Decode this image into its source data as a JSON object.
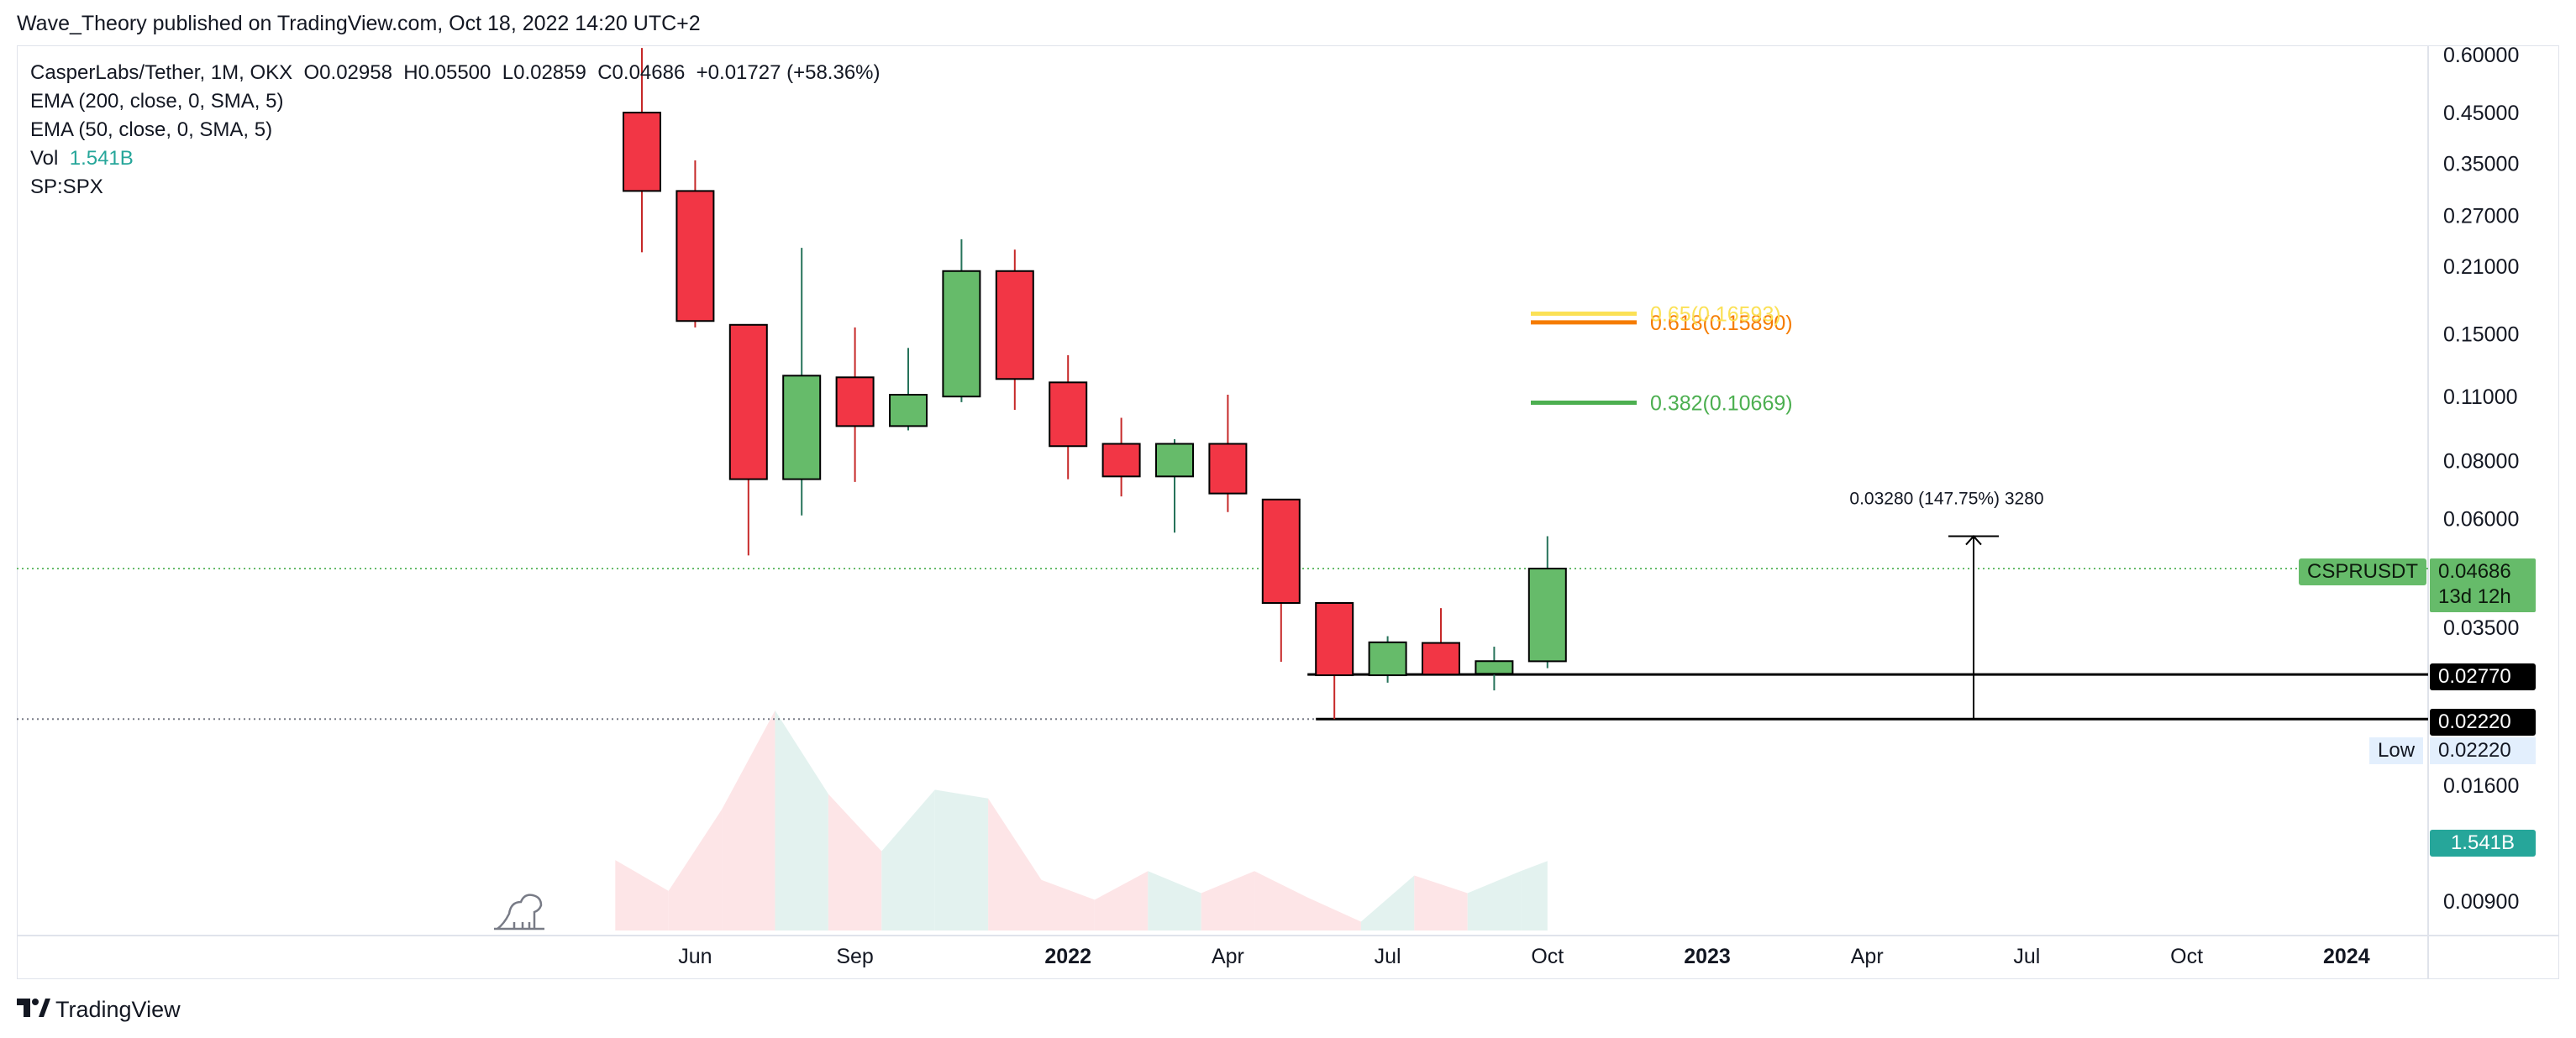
{
  "header": {
    "published": "Wave_Theory published on TradingView.com, Oct 18, 2022 14:20 UTC+2"
  },
  "legend": {
    "symbol_line": "CasperLabs/Tether, 1M, OKX",
    "ohlc": {
      "o_label": "O",
      "o": "0.02958",
      "h_label": "H",
      "h": "0.05500",
      "l_label": "L",
      "l": "0.02859",
      "c_label": "C",
      "c": "0.04686",
      "change": "+0.01727 (+58.36%)"
    },
    "ema200": "EMA (200, close, 0, SMA, 5)",
    "ema50": "EMA (50, close, 0, SMA, 5)",
    "vol_label": "Vol",
    "vol_value": "1.541B",
    "spx": "SP:SPX"
  },
  "tags": {
    "symbol": "CSPRUSDT",
    "price": "0.04686",
    "countdown": "13d 12h",
    "level1": "0.02770",
    "level2": "0.02220",
    "low_label": "Low",
    "low_value": "0.02220",
    "volume": "1.541B"
  },
  "colors": {
    "up": "#66bb6a",
    "down": "#f23645",
    "vol_up": "#e3f2ef",
    "vol_down": "#fde5e7",
    "fib_382": "#4caf50",
    "fib_618": "#f57c00",
    "fib_65": "#fbe156",
    "dotted": "#66bb6a"
  },
  "footer": {
    "brand": "TradingView",
    "logo_icon": "tradingview-logo-icon"
  },
  "chart_data": {
    "type": "candlestick",
    "timeframe": "1M",
    "y_scale": "log",
    "y_ticks": [
      "0.60000",
      "0.45000",
      "0.35000",
      "0.27000",
      "0.21000",
      "0.15000",
      "0.11000",
      "0.08000",
      "0.06000",
      "0.03500",
      "0.01600",
      "0.00900"
    ],
    "x_ticks": [
      {
        "date": "2021-06",
        "label": "Jun",
        "bold": false
      },
      {
        "date": "2021-09",
        "label": "Sep",
        "bold": false
      },
      {
        "date": "2022-01",
        "label": "2022",
        "bold": true
      },
      {
        "date": "2022-04",
        "label": "Apr",
        "bold": false
      },
      {
        "date": "2022-07",
        "label": "Jul",
        "bold": false
      },
      {
        "date": "2022-10",
        "label": "Oct",
        "bold": false
      },
      {
        "date": "2023-01",
        "label": "2023",
        "bold": true
      },
      {
        "date": "2023-04",
        "label": "Apr",
        "bold": false
      },
      {
        "date": "2023-07",
        "label": "Jul",
        "bold": false
      },
      {
        "date": "2023-10",
        "label": "Oct",
        "bold": false
      },
      {
        "date": "2024-01",
        "label": "2024",
        "bold": true
      }
    ],
    "candles": [
      {
        "date": "2021-05",
        "o": 0.45,
        "h": 0.62,
        "l": 0.225,
        "c": 0.305
      },
      {
        "date": "2021-06",
        "o": 0.305,
        "h": 0.355,
        "l": 0.155,
        "c": 0.16
      },
      {
        "date": "2021-07",
        "o": 0.157,
        "h": 0.157,
        "l": 0.05,
        "c": 0.073
      },
      {
        "date": "2021-08",
        "o": 0.073,
        "h": 0.23,
        "l": 0.061,
        "c": 0.122
      },
      {
        "date": "2021-09",
        "o": 0.121,
        "h": 0.155,
        "l": 0.072,
        "c": 0.095
      },
      {
        "date": "2021-10",
        "o": 0.095,
        "h": 0.14,
        "l": 0.093,
        "c": 0.111
      },
      {
        "date": "2021-11",
        "o": 0.11,
        "h": 0.24,
        "l": 0.107,
        "c": 0.205
      },
      {
        "date": "2021-12",
        "o": 0.205,
        "h": 0.228,
        "l": 0.103,
        "c": 0.12
      },
      {
        "date": "2022-01",
        "o": 0.118,
        "h": 0.135,
        "l": 0.073,
        "c": 0.086
      },
      {
        "date": "2022-02",
        "o": 0.087,
        "h": 0.099,
        "l": 0.067,
        "c": 0.074
      },
      {
        "date": "2022-03",
        "o": 0.074,
        "h": 0.089,
        "l": 0.056,
        "c": 0.087
      },
      {
        "date": "2022-04",
        "o": 0.087,
        "h": 0.111,
        "l": 0.062,
        "c": 0.068
      },
      {
        "date": "2022-05",
        "o": 0.066,
        "h": 0.066,
        "l": 0.0295,
        "c": 0.0395
      },
      {
        "date": "2022-06",
        "o": 0.0395,
        "h": 0.0395,
        "l": 0.0222,
        "c": 0.0276
      },
      {
        "date": "2022-07",
        "o": 0.0276,
        "h": 0.0335,
        "l": 0.0266,
        "c": 0.0325
      },
      {
        "date": "2022-08",
        "o": 0.0324,
        "h": 0.0385,
        "l": 0.0279,
        "c": 0.0277
      },
      {
        "date": "2022-09",
        "o": 0.0278,
        "h": 0.0318,
        "l": 0.0256,
        "c": 0.0296
      },
      {
        "date": "2022-10",
        "o": 0.02958,
        "h": 0.055,
        "l": 0.02859,
        "c": 0.04686
      }
    ],
    "volume_series": [
      {
        "date": "2021-05",
        "v": 0.32,
        "dir": "down"
      },
      {
        "date": "2021-06",
        "v": 0.18,
        "dir": "down"
      },
      {
        "date": "2021-07",
        "v": 0.55,
        "dir": "down"
      },
      {
        "date": "2021-08",
        "v": 1.0,
        "dir": "up"
      },
      {
        "date": "2021-09",
        "v": 0.62,
        "dir": "down"
      },
      {
        "date": "2021-10",
        "v": 0.36,
        "dir": "up"
      },
      {
        "date": "2021-11",
        "v": 0.64,
        "dir": "up"
      },
      {
        "date": "2021-12",
        "v": 0.6,
        "dir": "down"
      },
      {
        "date": "2022-01",
        "v": 0.23,
        "dir": "down"
      },
      {
        "date": "2022-02",
        "v": 0.14,
        "dir": "down"
      },
      {
        "date": "2022-03",
        "v": 0.27,
        "dir": "up"
      },
      {
        "date": "2022-04",
        "v": 0.17,
        "dir": "down"
      },
      {
        "date": "2022-05",
        "v": 0.27,
        "dir": "down"
      },
      {
        "date": "2022-06",
        "v": 0.15,
        "dir": "down"
      },
      {
        "date": "2022-07",
        "v": 0.04,
        "dir": "up"
      },
      {
        "date": "2022-08",
        "v": 0.25,
        "dir": "down"
      },
      {
        "date": "2022-09",
        "v": 0.17,
        "dir": "up"
      },
      {
        "date": "2022-10",
        "v": 0.27,
        "dir": "up"
      }
    ],
    "current_price": 0.04686,
    "horizontal_lines": [
      0.0277,
      0.0222
    ],
    "fib_levels": [
      {
        "label": "0.382(0.10669)",
        "value": 0.10669,
        "color": "#4caf50"
      },
      {
        "label": "0.618(0.15890)",
        "value": 0.1589,
        "color": "#f57c00"
      },
      {
        "label": "0.65(0.16593)",
        "value": 0.16593,
        "color": "#fbe156"
      }
    ],
    "measure": {
      "label": "0.03280 (147.75%) 3280",
      "from": 0.0222,
      "to": 0.055,
      "date": "2023-06"
    }
  }
}
